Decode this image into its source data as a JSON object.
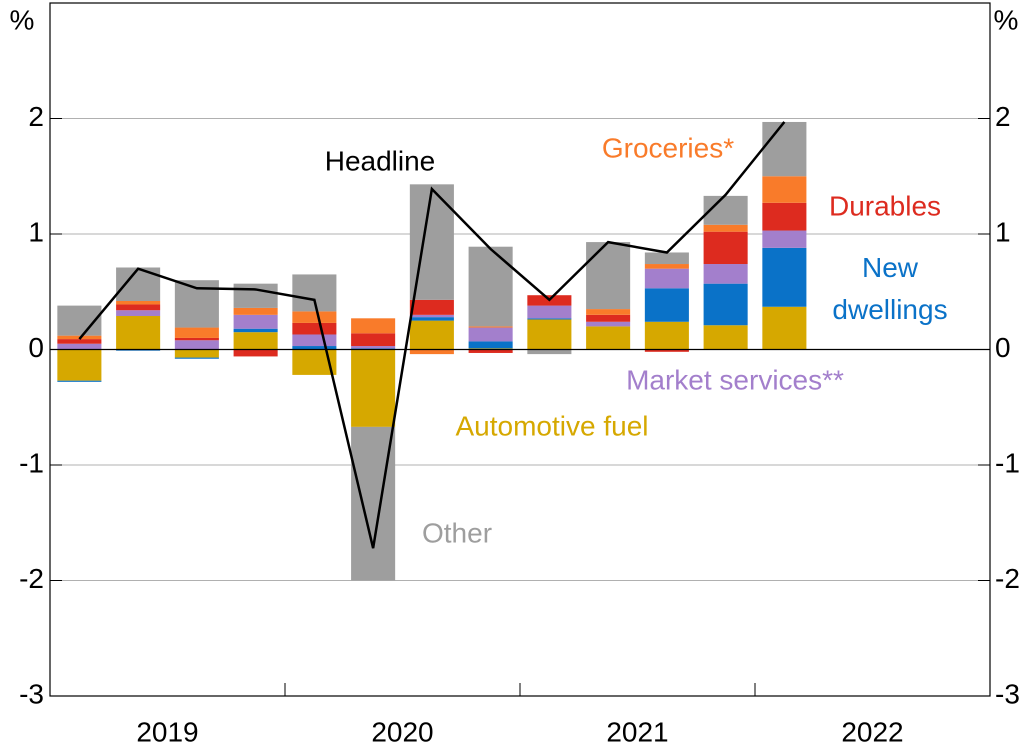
{
  "chart_data": {
    "type": "bar",
    "y_unit": "%",
    "year_labels": [
      "2019",
      "2020",
      "2021",
      "2022"
    ],
    "categories": [
      null,
      null,
      null,
      null,
      null,
      null,
      null,
      null,
      null,
      null,
      null,
      null,
      null
    ],
    "stacked": true,
    "ylim": [
      -3,
      3
    ],
    "yticks": [
      -3,
      -2,
      -1,
      0,
      1,
      2
    ],
    "grid": true,
    "series": [
      {
        "name": "Automotive fuel",
        "color": "#d6a800",
        "values": [
          -0.27,
          0.29,
          -0.07,
          0.15,
          -0.22,
          -0.67,
          0.25,
          0.01,
          0.26,
          0.2,
          0.24,
          0.21,
          0.37
        ]
      },
      {
        "name": "New dwellings",
        "color": "#0a72c8",
        "values": [
          -0.01,
          -0.01,
          -0.01,
          0.03,
          0.03,
          0.01,
          0.03,
          0.06,
          0.01,
          0,
          0.29,
          0.36,
          0.51
        ]
      },
      {
        "name": "Market services**",
        "color": "#a37fcc",
        "values": [
          0.05,
          0.05,
          0.08,
          0.12,
          0.1,
          0.02,
          0.02,
          0.12,
          0.11,
          0.04,
          0.17,
          0.17,
          0.15
        ]
      },
      {
        "name": "Durables",
        "color": "#dd2b1f",
        "values": [
          0.04,
          0.05,
          0.02,
          -0.06,
          0.1,
          0.11,
          0.13,
          -0.03,
          0.09,
          0.06,
          -0.02,
          0.28,
          0.24
        ]
      },
      {
        "name": "Groceries*",
        "color": "#f97b2a",
        "values": [
          0.03,
          0.03,
          0.09,
          0.06,
          0.1,
          0.13,
          -0.04,
          0.01,
          0,
          0.05,
          0.04,
          0.06,
          0.23
        ]
      },
      {
        "name": "Other",
        "color": "#9e9e9e",
        "values": [
          0.26,
          0.29,
          0.41,
          0.21,
          0.32,
          -1.33,
          1.0,
          0.69,
          -0.04,
          0.58,
          0.1,
          0.25,
          0.47
        ]
      }
    ],
    "line": {
      "name": "Headline",
      "color": "#000000",
      "values": [
        0.09,
        0.7,
        0.53,
        0.52,
        0.43,
        -1.72,
        1.39,
        0.87,
        0.43,
        0.93,
        0.84,
        1.34,
        1.97
      ]
    }
  }
}
